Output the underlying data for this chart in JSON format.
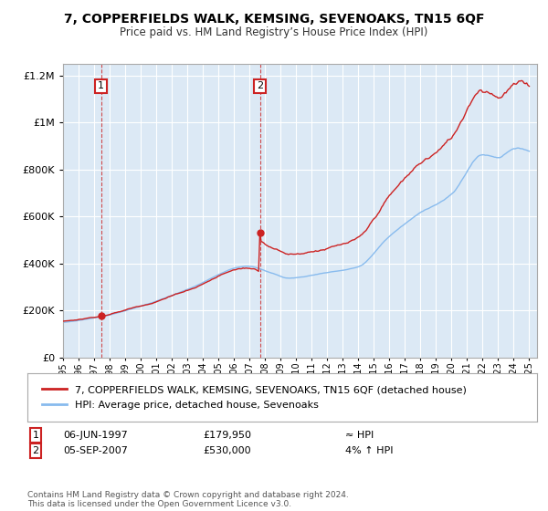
{
  "title": "7, COPPERFIELDS WALK, KEMSING, SEVENOAKS, TN15 6QF",
  "subtitle": "Price paid vs. HM Land Registry’s House Price Index (HPI)",
  "sale1_date": 1997.44,
  "sale1_price": 179950,
  "sale2_date": 2007.67,
  "sale2_price": 530000,
  "hpi_label": "HPI: Average price, detached house, Sevenoaks",
  "property_label": "7, COPPERFIELDS WALK, KEMSING, SEVENOAKS, TN15 6QF (detached house)",
  "legend1_date": "06-JUN-1997",
  "legend1_price": "£179,950",
  "legend1_note": "≈ HPI",
  "legend2_date": "05-SEP-2007",
  "legend2_price": "£530,000",
  "legend2_note": "4% ↑ HPI",
  "footer": "Contains HM Land Registry data © Crown copyright and database right 2024.\nThis data is licensed under the Open Government Licence v3.0.",
  "ylim": [
    0,
    1250000
  ],
  "xlim_start": 1995,
  "xlim_end": 2025.5,
  "fig_bg": "#ffffff",
  "plot_bg": "#dce9f5",
  "red_color": "#cc2222",
  "blue_color": "#88bbee",
  "grid_color": "#ffffff"
}
